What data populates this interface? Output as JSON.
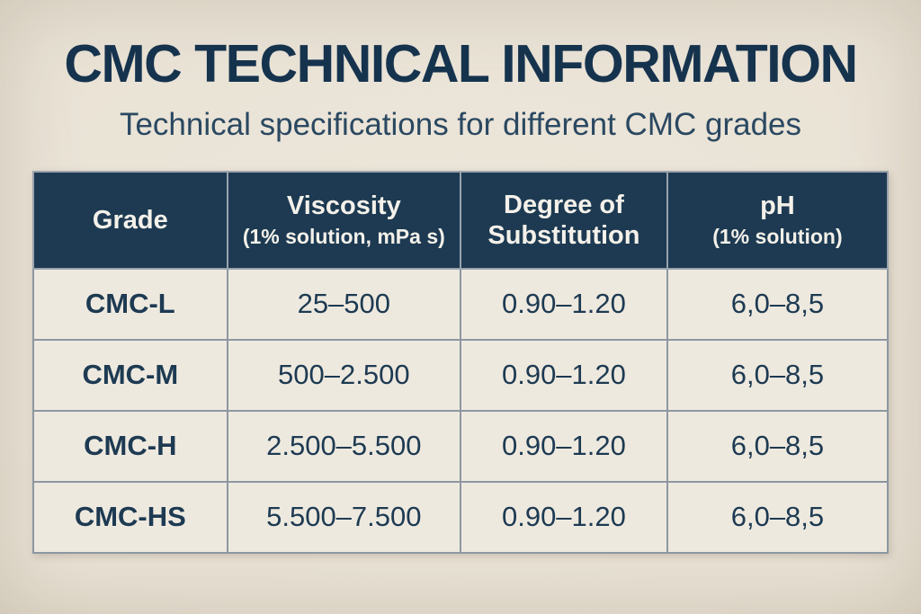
{
  "page": {
    "title": "CMC TECHNICAL INFORMATION",
    "subtitle": "Technical specifications for different CMC grades"
  },
  "colors": {
    "page_background": "#e9e2d5",
    "header_background": "#1d3a52",
    "header_text": "#f4f1ea",
    "cell_background": "#eee9df",
    "body_text": "#1d3a52",
    "title_text": "#16334e",
    "border": "#8d97a2"
  },
  "chart_data": {
    "type": "table",
    "title": "CMC TECHNICAL INFORMATION",
    "subtitle": "Technical specifications for different CMC grades",
    "columns": [
      {
        "label": "Grade",
        "sub": ""
      },
      {
        "label": "Viscosity",
        "sub": "(1% solution, mPa s)"
      },
      {
        "label": "Degree of Substitution",
        "sub": ""
      },
      {
        "label": "pH",
        "sub": "(1% solution)"
      }
    ],
    "rows": [
      [
        "CMC-L",
        "25–500",
        "0.90–1.20",
        "6,0–8,5"
      ],
      [
        "CMC-M",
        "500–2.500",
        "0.90–1.20",
        "6,0–8,5"
      ],
      [
        "CMC-H",
        "2.500–5.500",
        "0.90–1.20",
        "6,0–8,5"
      ],
      [
        "CMC-HS",
        "5.500–7.500",
        "0.90–1.20",
        "6,0–8,5"
      ]
    ]
  }
}
